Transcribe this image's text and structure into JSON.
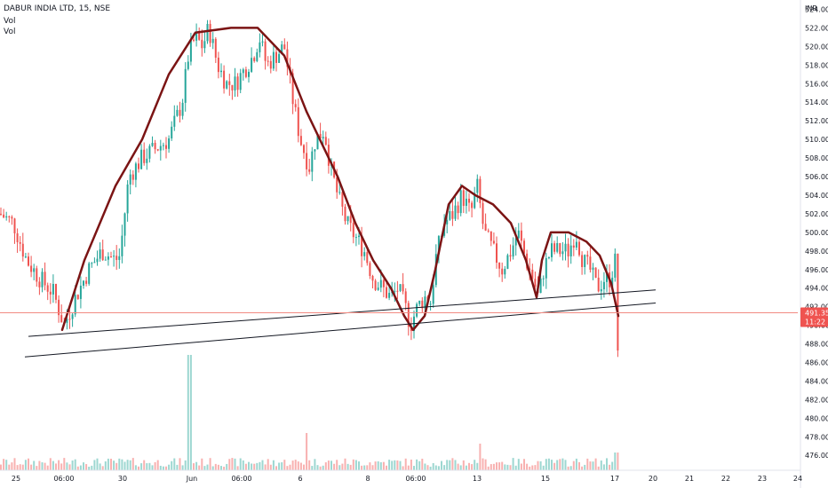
{
  "header": {
    "title": "DABUR INDIA LTD, 15, NSE",
    "vol_line1": "Vol",
    "vol_line2": "Vol"
  },
  "colors": {
    "up": "#26a69a",
    "down": "#ef5350",
    "curve": "#7b1414",
    "trendline": "#131722",
    "price_line": "#f28b82",
    "badge": "#ef5350",
    "axis_text": "#131722"
  },
  "chart_data": {
    "type": "candlestick",
    "currency_label": "INR",
    "ylim": [
      474.4,
      525.0
    ],
    "y_ticks": [
      "476.00",
      "478.00",
      "480.00",
      "482.00",
      "484.00",
      "486.00",
      "488.00",
      "490.00",
      "492.00",
      "494.00",
      "496.00",
      "498.00",
      "500.00",
      "502.00",
      "504.00",
      "506.00",
      "508.00",
      "510.00",
      "512.00",
      "514.00",
      "516.00",
      "518.00",
      "520.00",
      "522.00",
      "524.00"
    ],
    "x_ticks": [
      "25",
      "06:00",
      "30",
      "Jun",
      "06:00",
      "6",
      "8",
      "06:00",
      "13",
      "15",
      "17",
      "20",
      "21",
      "22",
      "23",
      "24"
    ],
    "last_price": "491.35",
    "countdown": "11:22",
    "price_path": [
      [
        0,
        502
      ],
      [
        15,
        501
      ],
      [
        30,
        497
      ],
      [
        45,
        495
      ],
      [
        60,
        493.5
      ],
      [
        72,
        490
      ],
      [
        85,
        493
      ],
      [
        100,
        496
      ],
      [
        115,
        498
      ],
      [
        130,
        497
      ],
      [
        135,
        497.5
      ],
      [
        145,
        506
      ],
      [
        160,
        508
      ],
      [
        175,
        509
      ],
      [
        190,
        510
      ],
      [
        205,
        514
      ],
      [
        212,
        519
      ],
      [
        220,
        521
      ],
      [
        228,
        520
      ],
      [
        235,
        522
      ],
      [
        245,
        518
      ],
      [
        255,
        516
      ],
      [
        265,
        516
      ],
      [
        275,
        517.5
      ],
      [
        285,
        519
      ],
      [
        292,
        521
      ],
      [
        300,
        518
      ],
      [
        310,
        519
      ],
      [
        320,
        520
      ],
      [
        330,
        514
      ],
      [
        338,
        510
      ],
      [
        348,
        507
      ],
      [
        355,
        510
      ],
      [
        365,
        511
      ],
      [
        372,
        507
      ],
      [
        380,
        504
      ],
      [
        390,
        501
      ],
      [
        400,
        499.5
      ],
      [
        410,
        498
      ],
      [
        420,
        495
      ],
      [
        430,
        494
      ],
      [
        440,
        493
      ],
      [
        448,
        494
      ],
      [
        456,
        492
      ],
      [
        462,
        490
      ],
      [
        470,
        492
      ],
      [
        478,
        493
      ],
      [
        485,
        492.5
      ],
      [
        490,
        497
      ],
      [
        500,
        501
      ],
      [
        510,
        502
      ],
      [
        520,
        504
      ],
      [
        530,
        502
      ],
      [
        537,
        505
      ],
      [
        545,
        500
      ],
      [
        555,
        498
      ],
      [
        565,
        496
      ],
      [
        575,
        498
      ],
      [
        583,
        500
      ],
      [
        592,
        497
      ],
      [
        600,
        495
      ],
      [
        606,
        493
      ],
      [
        612,
        496
      ],
      [
        620,
        498
      ],
      [
        630,
        498
      ],
      [
        640,
        498
      ],
      [
        648,
        500
      ],
      [
        656,
        497
      ],
      [
        664,
        496
      ],
      [
        672,
        494
      ],
      [
        680,
        495
      ],
      [
        688,
        495
      ],
      [
        692,
        498
      ],
      [
        695,
        486.5
      ],
      [
        697,
        491.35
      ]
    ],
    "overlay_curves": [
      [
        [
          70,
          489.5
        ],
        [
          95,
          497
        ],
        [
          130,
          505
        ],
        [
          160,
          510
        ],
        [
          190,
          517
        ],
        [
          220,
          521.5
        ],
        [
          260,
          522
        ],
        [
          290,
          522
        ],
        [
          320,
          519
        ],
        [
          345,
          513
        ],
        [
          365,
          509
        ],
        [
          380,
          506
        ],
        [
          400,
          501
        ],
        [
          420,
          497
        ],
        [
          440,
          494
        ],
        [
          455,
          491
        ],
        [
          465,
          489.5
        ],
        [
          478,
          491
        ],
        [
          490,
          496
        ],
        [
          505,
          503
        ],
        [
          520,
          505
        ],
        [
          535,
          504
        ],
        [
          555,
          503
        ],
        [
          575,
          501
        ],
        [
          592,
          497
        ],
        [
          598,
          495
        ],
        [
          604,
          493
        ],
        [
          610,
          497
        ],
        [
          620,
          500
        ],
        [
          640,
          500
        ],
        [
          660,
          499
        ],
        [
          675,
          497.5
        ],
        [
          688,
          494.5
        ],
        [
          696,
          491
        ]
      ]
    ],
    "trendlines": [
      [
        [
          32,
          488.8
        ],
        [
          738,
          493.8
        ]
      ],
      [
        [
          28,
          486.6
        ],
        [
          738,
          492.4
        ]
      ]
    ],
    "volume_note": "volume bars along bottom; large spikes near Jun and mid-chart"
  }
}
